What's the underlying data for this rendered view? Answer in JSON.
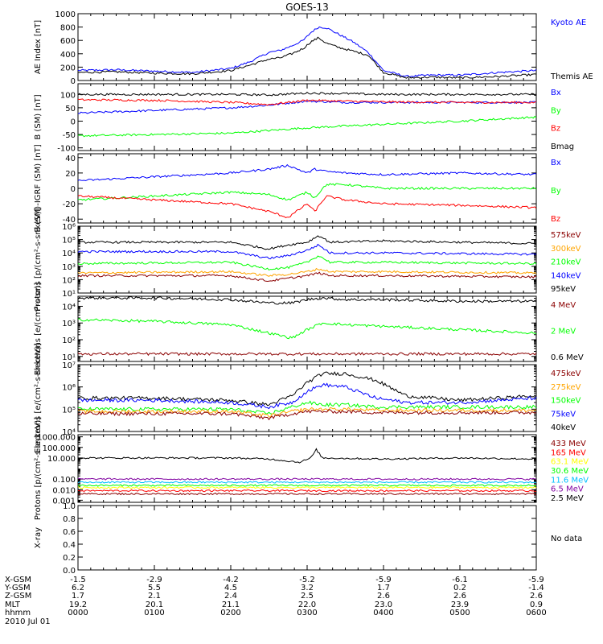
{
  "title": "GOES-13",
  "date_label": "2010 Jul 01",
  "orbit_table": {
    "row_labels": [
      "X-GSM",
      "Y-GSM",
      "Z-GSM",
      "MLT",
      "hhmm"
    ],
    "columns": [
      [
        "-1.5",
        "6.2",
        "1.7",
        "19.2",
        "0000"
      ],
      [
        "-2.9",
        "5.5",
        "2.1",
        "20.1",
        "0100"
      ],
      [
        "-4.2",
        "4.5",
        "2.4",
        "21.1",
        "0200"
      ],
      [
        "-5.2",
        "3.2",
        "2.5",
        "22.0",
        "0300"
      ],
      [
        "-5.9",
        "1.7",
        "2.6",
        "23.0",
        "0400"
      ],
      [
        "-6.1",
        "0.2",
        "2.6",
        "23.9",
        "0500"
      ],
      [
        "-5.9",
        "-1.4",
        "2.6",
        "0.9",
        "0600"
      ]
    ]
  },
  "colors": {
    "black": "#000000",
    "blue": "#0000ff",
    "green": "#00ff00",
    "red": "#ff0000",
    "dark_red": "#8b0000",
    "orange": "#ffa500",
    "yellow": "#ffff00",
    "cyan": "#00bfff",
    "purple": "#8000a0",
    "blue2": "#0050ff"
  },
  "chart_data": [
    {
      "type": "line",
      "ylabel": "AE Index [nT]",
      "scale": "linear",
      "ylim": [
        0,
        1000
      ],
      "ticks": [
        0,
        200,
        400,
        600,
        800,
        1000
      ],
      "tick_labels": [
        "0",
        "200",
        "400",
        "600",
        "800",
        "1000"
      ],
      "legend": [
        {
          "name": "Kyoto AE",
          "color": "blue"
        },
        {
          "name": "Themis AE",
          "color": "black"
        }
      ],
      "x": [
        0,
        0.5,
        1,
        1.5,
        2,
        2.25,
        2.5,
        2.65,
        2.8,
        2.95,
        3.05,
        3.15,
        3.25,
        3.4,
        3.6,
        3.8,
        4.0,
        4.3,
        4.6,
        5.0,
        5.5,
        6.0
      ],
      "series": [
        {
          "name": "Kyoto AE",
          "color": "blue",
          "values": [
            150,
            160,
            140,
            120,
            180,
            280,
            420,
            450,
            520,
            600,
            720,
            800,
            790,
            700,
            580,
            420,
            150,
            60,
            80,
            80,
            120,
            150
          ]
        },
        {
          "name": "Themis AE",
          "color": "black",
          "values": [
            120,
            130,
            110,
            100,
            150,
            230,
            320,
            340,
            400,
            480,
            580,
            640,
            560,
            500,
            440,
            380,
            120,
            40,
            50,
            40,
            60,
            90
          ]
        }
      ]
    },
    {
      "type": "line",
      "ylabel": "B (SM) [nT]",
      "scale": "linear",
      "ylim": [
        -110,
        140
      ],
      "ticks": [
        -100,
        -50,
        0,
        50,
        100
      ],
      "tick_labels": [
        "-100",
        "-50",
        "0",
        "50",
        "100"
      ],
      "legend": [
        {
          "name": "Bx",
          "color": "blue"
        },
        {
          "name": "By",
          "color": "green"
        },
        {
          "name": "Bz",
          "color": "red"
        },
        {
          "name": "Bmag",
          "color": "black"
        }
      ],
      "x": [
        0,
        1,
        2,
        2.5,
        3,
        3.5,
        4,
        5,
        6
      ],
      "series": [
        {
          "name": "Bx",
          "color": "blue",
          "values": [
            30,
            40,
            50,
            60,
            75,
            70,
            70,
            70,
            70
          ]
        },
        {
          "name": "By",
          "color": "green",
          "values": [
            -55,
            -50,
            -45,
            -35,
            -25,
            -18,
            -12,
            0,
            15
          ]
        },
        {
          "name": "Bz",
          "color": "red",
          "values": [
            80,
            78,
            70,
            62,
            78,
            75,
            72,
            70,
            70
          ]
        },
        {
          "name": "Bmag",
          "color": "black",
          "values": [
            100,
            100,
            100,
            98,
            105,
            103,
            100,
            100,
            100
          ]
        }
      ]
    },
    {
      "type": "line",
      "ylabel": "B (SM)-IGRF (SM) [nT]",
      "scale": "linear",
      "ylim": [
        -45,
        45
      ],
      "ticks": [
        -40,
        -20,
        0,
        20,
        40
      ],
      "tick_labels": [
        "-40",
        "-20",
        "0",
        "20",
        "40"
      ],
      "legend": [
        {
          "name": "Bx",
          "color": "blue"
        },
        {
          "name": "By",
          "color": "green"
        },
        {
          "name": "Bz",
          "color": "red"
        }
      ],
      "x": [
        0,
        1,
        2,
        2.5,
        2.75,
        3.0,
        3.1,
        3.25,
        3.5,
        4,
        5,
        6
      ],
      "series": [
        {
          "name": "Bx",
          "color": "blue",
          "values": [
            10,
            15,
            20,
            25,
            30,
            20,
            25,
            22,
            20,
            18,
            20,
            18
          ]
        },
        {
          "name": "By",
          "color": "green",
          "values": [
            -15,
            -10,
            -5,
            -8,
            -15,
            -5,
            -12,
            5,
            5,
            0,
            0,
            0
          ]
        },
        {
          "name": "Bz",
          "color": "red",
          "values": [
            -10,
            -15,
            -20,
            -30,
            -38,
            -20,
            -30,
            -10,
            -15,
            -20,
            -22,
            -25
          ]
        }
      ]
    },
    {
      "type": "line",
      "ylabel": "Protons [p/(cm²-s-sr-keV)]",
      "scale": "log",
      "ylim": [
        1,
        6
      ],
      "ticks": [
        1,
        2,
        3,
        4,
        5,
        6
      ],
      "tick_labels": [
        "10¹",
        "10²",
        "10³",
        "10⁴",
        "10⁵",
        "10⁶"
      ],
      "legend": [
        {
          "name": "575keV",
          "color": "dark_red"
        },
        {
          "name": "300keV",
          "color": "orange"
        },
        {
          "name": "210keV",
          "color": "green"
        },
        {
          "name": "140keV",
          "color": "blue"
        },
        {
          "name": "95keV",
          "color": "black"
        }
      ],
      "x": [
        0,
        2,
        2.5,
        2.75,
        3.0,
        3.15,
        3.3,
        4,
        6
      ],
      "series": [
        {
          "name": "95keV",
          "color": "black",
          "values": [
            4.8,
            4.8,
            4.3,
            4.6,
            4.8,
            5.3,
            4.8,
            4.9,
            4.7
          ]
        },
        {
          "name": "140keV",
          "color": "blue",
          "values": [
            4.1,
            4.1,
            3.6,
            3.8,
            4.2,
            4.6,
            4.0,
            4.0,
            3.9
          ]
        },
        {
          "name": "210keV",
          "color": "green",
          "values": [
            3.2,
            3.3,
            2.8,
            2.9,
            3.3,
            3.8,
            3.3,
            3.3,
            3.2
          ]
        },
        {
          "name": "300keV",
          "color": "orange",
          "values": [
            2.5,
            2.6,
            2.3,
            2.4,
            2.6,
            2.8,
            2.6,
            2.6,
            2.5
          ]
        },
        {
          "name": "575keV",
          "color": "dark_red",
          "values": [
            2.3,
            2.3,
            1.9,
            2.1,
            2.3,
            2.5,
            2.3,
            2.3,
            2.2
          ]
        }
      ]
    },
    {
      "type": "line",
      "ylabel": "Electrons [e/(cm²-s-sr)]",
      "scale": "log",
      "ylim": [
        0.7,
        4.6
      ],
      "ticks": [
        1,
        2,
        3,
        4
      ],
      "tick_labels": [
        "10¹",
        "10²",
        "10³",
        "10⁴"
      ],
      "legend": [
        {
          "name": "4 MeV",
          "color": "dark_red"
        },
        {
          "name": "2 MeV",
          "color": "green"
        },
        {
          "name": "0.6 MeV",
          "color": "black"
        }
      ],
      "x": [
        0,
        1,
        2,
        2.5,
        2.8,
        3.0,
        3.2,
        3.5,
        4,
        5,
        6
      ],
      "series": [
        {
          "name": "0.6 MeV",
          "color": "black",
          "values": [
            4.5,
            4.5,
            4.4,
            4.2,
            4.2,
            4.4,
            4.5,
            4.4,
            4.4,
            4.3,
            4.3
          ]
        },
        {
          "name": "2 MeV",
          "color": "green",
          "values": [
            3.2,
            3.1,
            2.9,
            2.4,
            2.1,
            2.6,
            3.0,
            2.9,
            2.8,
            2.6,
            2.4
          ]
        },
        {
          "name": "4 MeV",
          "color": "dark_red",
          "values": [
            1.15,
            1.15,
            1.15,
            1.15,
            1.15,
            1.15,
            1.15,
            1.15,
            1.15,
            1.15,
            1.15
          ]
        }
      ]
    },
    {
      "type": "line",
      "ylabel": "Electrons [e/(cm²-s-sr-keV)]",
      "scale": "log",
      "ylim": [
        4,
        7
      ],
      "ticks": [
        4,
        5,
        6,
        7
      ],
      "tick_labels": [
        "10⁴",
        "10⁵",
        "10⁶",
        "10⁷"
      ],
      "legend": [
        {
          "name": "475keV",
          "color": "dark_red"
        },
        {
          "name": "275keV",
          "color": "orange"
        },
        {
          "name": "150keV",
          "color": "green"
        },
        {
          "name": "75keV",
          "color": "blue"
        },
        {
          "name": "40keV",
          "color": "black"
        }
      ],
      "x": [
        0,
        1,
        2,
        2.5,
        2.8,
        3.0,
        3.2,
        3.5,
        3.9,
        4.3,
        5,
        6
      ],
      "series": [
        {
          "name": "40keV",
          "color": "black",
          "values": [
            5.5,
            5.5,
            5.4,
            5.2,
            5.6,
            6.2,
            6.6,
            6.6,
            6.3,
            5.6,
            5.4,
            5.6
          ]
        },
        {
          "name": "75keV",
          "color": "blue",
          "values": [
            5.4,
            5.4,
            5.3,
            5.1,
            5.3,
            5.8,
            6.1,
            6.0,
            5.5,
            5.3,
            5.3,
            5.5
          ]
        },
        {
          "name": "150keV",
          "color": "green",
          "values": [
            5.0,
            5.0,
            5.0,
            4.8,
            5.1,
            5.3,
            5.2,
            5.2,
            5.1,
            5.1,
            5.1,
            5.1
          ]
        },
        {
          "name": "275keV",
          "color": "orange",
          "values": [
            4.9,
            4.9,
            4.9,
            4.7,
            4.9,
            5.0,
            5.0,
            5.0,
            4.95,
            4.95,
            4.95,
            4.95
          ]
        },
        {
          "name": "475keV",
          "color": "dark_red",
          "values": [
            4.8,
            4.8,
            4.8,
            4.6,
            4.8,
            4.9,
            4.9,
            4.9,
            4.85,
            4.85,
            4.85,
            4.85
          ]
        }
      ]
    },
    {
      "type": "line",
      "ylabel": "Protons [p/(cm²-s-sr-keV)]",
      "scale": "log",
      "ylim": [
        -3.2,
        3.2
      ],
      "ticks": [
        -3,
        -2,
        -1,
        1,
        2,
        3
      ],
      "tick_labels": [
        "0.001",
        "0.010",
        "0.100",
        "10.000",
        "100.000",
        "1000.000"
      ],
      "legend": [
        {
          "name": "433 MeV",
          "color": "dark_red"
        },
        {
          "name": "165 MeV",
          "color": "red"
        },
        {
          "name": "63.1 MeV",
          "color": "yellow"
        },
        {
          "name": "30.6 MeV",
          "color": "green"
        },
        {
          "name": "11.6 MeV",
          "color": "cyan"
        },
        {
          "name": "6.5 MeV",
          "color": "purple"
        },
        {
          "name": "2.5 MeV",
          "color": "black"
        }
      ],
      "x": [
        0,
        1,
        2,
        2.5,
        2.9,
        3.05,
        3.12,
        3.2,
        4,
        5,
        6
      ],
      "series": [
        {
          "name": "2.5 MeV",
          "color": "black",
          "values": [
            1.0,
            1.0,
            1.0,
            0.9,
            0.6,
            1.0,
            1.8,
            1.0,
            0.9,
            1.0,
            0.9
          ]
        },
        {
          "name": "6.5 MeV",
          "color": "purple",
          "values": [
            -1.0,
            -1.0,
            -1.0,
            -1.0,
            -1.0,
            -1.0,
            -1.0,
            -1.0,
            -1.0,
            -1.0,
            -1.0
          ]
        },
        {
          "name": "11.6 MeV",
          "color": "cyan",
          "values": [
            -1.3,
            -1.3,
            -1.3,
            -1.3,
            -1.3,
            -1.3,
            -1.3,
            -1.3,
            -1.3,
            -1.3,
            -1.3
          ]
        },
        {
          "name": "30.6 MeV",
          "color": "green",
          "values": [
            -1.6,
            -1.6,
            -1.6,
            -1.6,
            -1.6,
            -1.6,
            -1.6,
            -1.6,
            -1.6,
            -1.6,
            -1.6
          ]
        },
        {
          "name": "63.1 MeV",
          "color": "yellow",
          "values": [
            -1.8,
            -1.8,
            -1.8,
            -1.8,
            -1.8,
            -1.8,
            -1.8,
            -1.8,
            -1.8,
            -1.8,
            -1.8
          ]
        },
        {
          "name": "165 MeV",
          "color": "red",
          "values": [
            -2.1,
            -2.1,
            -2.1,
            -2.1,
            -2.1,
            -2.1,
            -2.1,
            -2.1,
            -2.1,
            -2.1,
            -2.1
          ]
        },
        {
          "name": "433 MeV",
          "color": "dark_red",
          "values": [
            -2.4,
            -2.4,
            -2.4,
            -2.4,
            -2.4,
            -2.4,
            -2.4,
            -2.4,
            -2.4,
            -2.4,
            -2.4
          ]
        }
      ]
    },
    {
      "type": "line",
      "ylabel": "X-ray",
      "scale": "linear",
      "ylim": [
        0,
        1
      ],
      "ticks": [
        0,
        0.2,
        0.4,
        0.6,
        0.8,
        1.0
      ],
      "tick_labels": [
        "0.0",
        "0.2",
        "0.4",
        "0.6",
        "0.8",
        "1.0"
      ],
      "no_data_text": "No data",
      "legend": [],
      "x": [],
      "series": []
    }
  ]
}
